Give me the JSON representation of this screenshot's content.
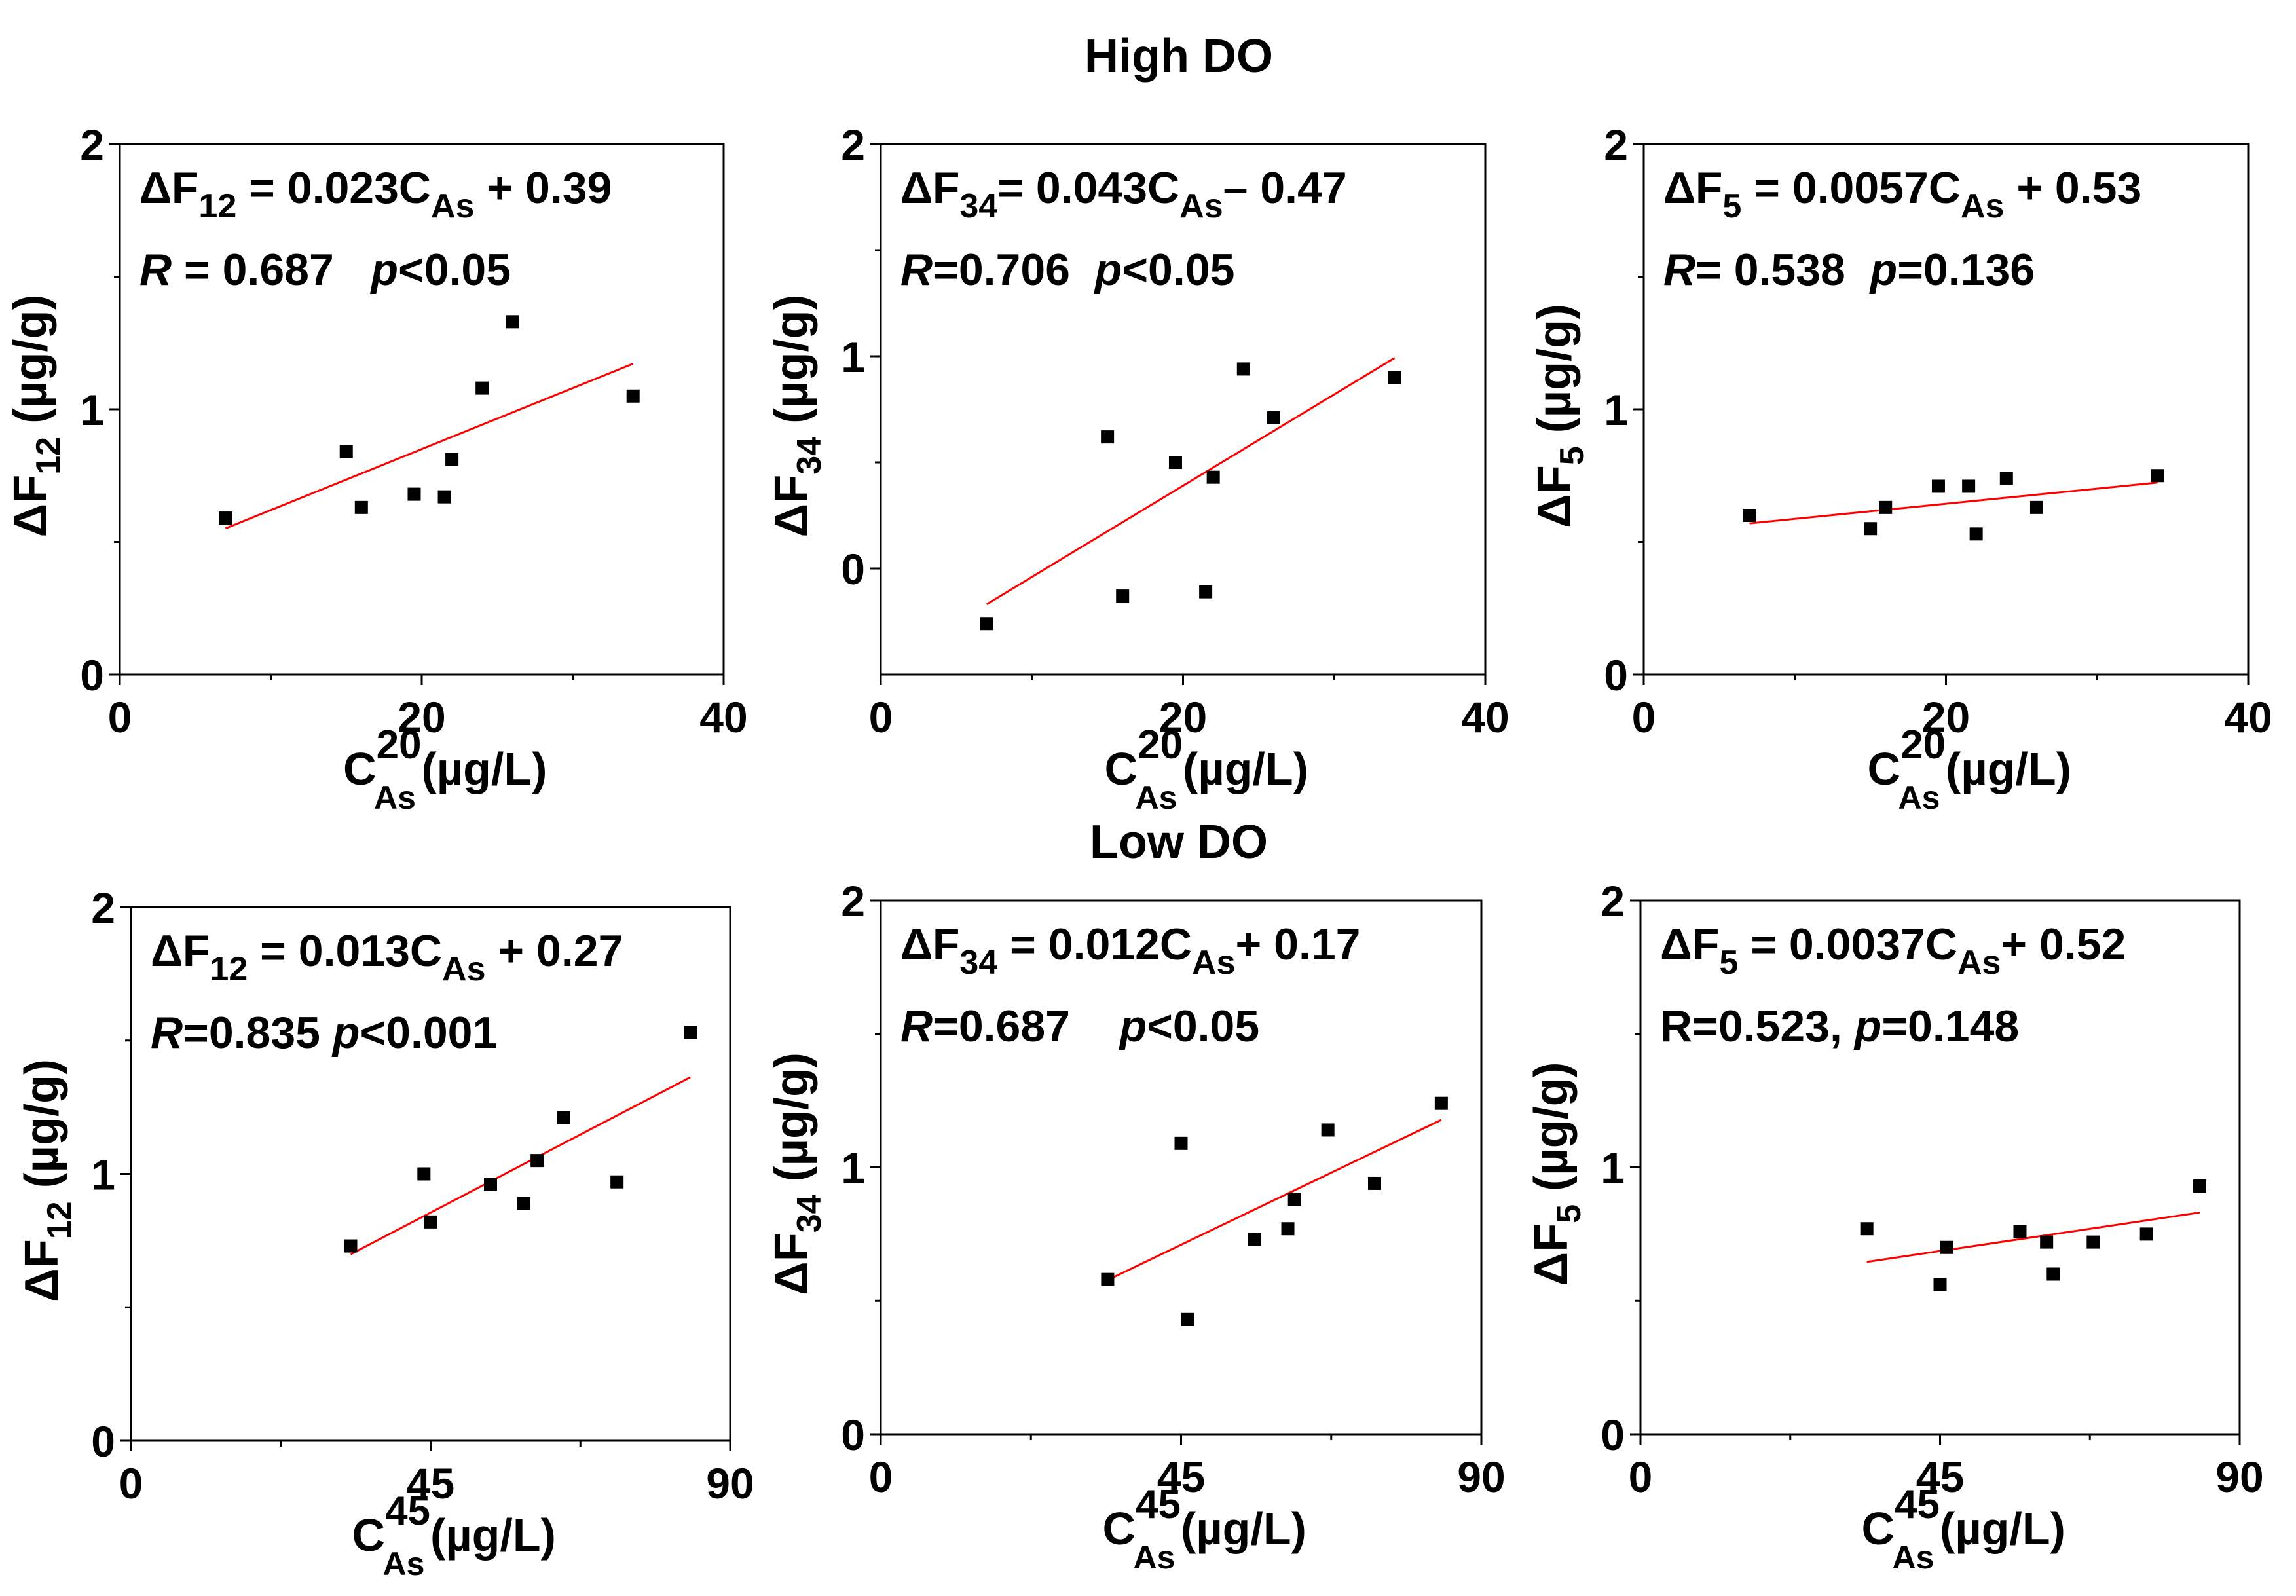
{
  "titles": {
    "high": "High DO",
    "low": "Low DO"
  },
  "colors": {
    "fit_line": "#ff0000",
    "points": "#000000",
    "axes": "#000000"
  },
  "chart_data": [
    {
      "type": "scatter",
      "group": "High DO",
      "panel": "top-left",
      "xlim": [
        0,
        40
      ],
      "ylim": [
        0,
        2
      ],
      "xticks": [
        0,
        20,
        40
      ],
      "yticks": [
        0,
        1,
        2
      ],
      "x_minor": [
        10,
        30
      ],
      "y_minor": [
        0.5,
        1.5
      ],
      "ylabel": {
        "main": "ΔF",
        "sub": "12",
        "unit": " (µg/g)"
      },
      "xlabel": {
        "main": "C",
        "sup": "20",
        "sub": "As",
        "unit": "(µg/L)"
      },
      "equation": [
        {
          "t": "ΔF"
        },
        {
          "t": "12",
          "sub": true
        },
        {
          "t": " = 0.023C"
        },
        {
          "t": "As",
          "sub": true
        },
        {
          "t": " + 0.39"
        }
      ],
      "stats": [
        {
          "t": "R",
          "i": true
        },
        {
          "t": " = 0.687   "
        },
        {
          "t": "p",
          "i": true
        },
        {
          "t": "<0.05"
        }
      ],
      "points": [
        [
          7,
          0.59
        ],
        [
          15,
          0.84
        ],
        [
          16,
          0.63
        ],
        [
          19.5,
          0.68
        ],
        [
          21.5,
          0.67
        ],
        [
          22,
          0.81
        ],
        [
          24,
          1.08
        ],
        [
          26,
          1.33
        ],
        [
          34,
          1.05
        ]
      ],
      "fit": {
        "slope": 0.023,
        "intercept": 0.39,
        "x_range": [
          7,
          34
        ]
      }
    },
    {
      "type": "scatter",
      "group": "High DO",
      "panel": "top-middle",
      "xlim": [
        0,
        40
      ],
      "ylim": [
        -0.5,
        2
      ],
      "xticks": [
        0,
        20,
        40
      ],
      "yticks": [
        0,
        1,
        2
      ],
      "x_minor": [
        10,
        30
      ],
      "y_minor": [
        0.5,
        1.5
      ],
      "ylabel": {
        "main": "ΔF",
        "sub": "34",
        "unit": " (µg/g)"
      },
      "xlabel": {
        "main": "C",
        "sup": "20",
        "sub": "As",
        "unit": "(µg/L)"
      },
      "equation": [
        {
          "t": "ΔF"
        },
        {
          "t": "34",
          "sub": true
        },
        {
          "t": "= 0.043C"
        },
        {
          "t": "As",
          "sub": true
        },
        {
          "t": "– 0.47"
        }
      ],
      "stats": [
        {
          "t": "R",
          "i": true
        },
        {
          "t": "=0.706  "
        },
        {
          "t": "p",
          "i": true
        },
        {
          "t": "<0.05"
        }
      ],
      "points": [
        [
          7,
          -0.26
        ],
        [
          15,
          0.62
        ],
        [
          16,
          -0.13
        ],
        [
          19.5,
          0.5
        ],
        [
          21.5,
          -0.11
        ],
        [
          22,
          0.43
        ],
        [
          24,
          0.94
        ],
        [
          26,
          0.71
        ],
        [
          34,
          0.9
        ]
      ],
      "fit": {
        "slope": 0.043,
        "intercept": -0.47,
        "x_range": [
          7,
          34
        ]
      }
    },
    {
      "type": "scatter",
      "group": "High DO",
      "panel": "top-right",
      "xlim": [
        0,
        40
      ],
      "ylim": [
        0,
        2
      ],
      "xticks": [
        0,
        20,
        40
      ],
      "yticks": [
        0,
        1,
        2
      ],
      "x_minor": [
        10,
        30
      ],
      "y_minor": [
        0.5,
        1.5
      ],
      "ylabel": {
        "main": "ΔF",
        "sub": "5",
        "unit": " (µg/g)"
      },
      "xlabel": {
        "main": "C",
        "sup": "20",
        "sub": "As",
        "unit": "(µg/L)"
      },
      "equation": [
        {
          "t": "ΔF"
        },
        {
          "t": "5",
          "sub": true
        },
        {
          "t": " = 0.0057C"
        },
        {
          "t": "As",
          "sub": true
        },
        {
          "t": " + 0.53"
        }
      ],
      "stats": [
        {
          "t": "R",
          "i": true
        },
        {
          "t": "= 0.538  "
        },
        {
          "t": "p",
          "i": true
        },
        {
          "t": "=0.136"
        }
      ],
      "points": [
        [
          7,
          0.6
        ],
        [
          15,
          0.55
        ],
        [
          16,
          0.63
        ],
        [
          19.5,
          0.71
        ],
        [
          21.5,
          0.71
        ],
        [
          22,
          0.53
        ],
        [
          24,
          0.74
        ],
        [
          26,
          0.63
        ],
        [
          34,
          0.75
        ]
      ],
      "fit": {
        "slope": 0.0057,
        "intercept": 0.53,
        "x_range": [
          7,
          34
        ]
      }
    },
    {
      "type": "scatter",
      "group": "Low DO",
      "panel": "bottom-left",
      "xlim": [
        0,
        90
      ],
      "ylim": [
        0,
        2
      ],
      "xticks": [
        0,
        45,
        90
      ],
      "yticks": [
        0,
        1,
        2
      ],
      "x_minor": [
        22.5,
        67.5
      ],
      "y_minor": [
        0.5,
        1.5
      ],
      "ylabel": {
        "main": "ΔF",
        "sub": "12",
        "unit": " (µg/g)"
      },
      "xlabel": {
        "main": "C",
        "sup": "45",
        "sub": "As",
        "unit": "(µg/L)"
      },
      "equation": [
        {
          "t": "ΔF"
        },
        {
          "t": "12",
          "sub": true
        },
        {
          "t": " = 0.013C"
        },
        {
          "t": "As",
          "sub": true
        },
        {
          "t": " + 0.27"
        }
      ],
      "stats": [
        {
          "t": "R",
          "i": true
        },
        {
          "t": "=0.835 "
        },
        {
          "t": "p",
          "i": true
        },
        {
          "t": "<0.001"
        }
      ],
      "points": [
        [
          33,
          0.73
        ],
        [
          44,
          1.0
        ],
        [
          45,
          0.82
        ],
        [
          54,
          0.96
        ],
        [
          59,
          0.89
        ],
        [
          61,
          1.05
        ],
        [
          65,
          1.21
        ],
        [
          73,
          0.97
        ],
        [
          84,
          1.53
        ]
      ],
      "fit": {
        "slope": 0.013,
        "intercept": 0.27,
        "x_range": [
          33,
          84
        ]
      }
    },
    {
      "type": "scatter",
      "group": "Low DO",
      "panel": "bottom-middle",
      "xlim": [
        0,
        90
      ],
      "ylim": [
        0,
        2
      ],
      "xticks": [
        0,
        45,
        90
      ],
      "yticks": [
        0,
        1,
        2
      ],
      "x_minor": [
        22.5,
        67.5
      ],
      "y_minor": [
        0.5,
        1.5
      ],
      "ylabel": {
        "main": "ΔF",
        "sub": "34",
        "unit": " (µg/g)"
      },
      "xlabel": {
        "main": "C",
        "sup": "45",
        "sub": "As",
        "unit": "(µg/L)"
      },
      "equation": [
        {
          "t": "ΔF"
        },
        {
          "t": "34",
          "sub": true
        },
        {
          "t": " = 0.012C"
        },
        {
          "t": "As",
          "sub": true
        },
        {
          "t": "+ 0.17"
        }
      ],
      "stats": [
        {
          "t": "R",
          "i": true
        },
        {
          "t": "=0.687    "
        },
        {
          "t": "p",
          "i": true
        },
        {
          "t": "<0.05"
        }
      ],
      "points": [
        [
          34,
          0.58
        ],
        [
          45,
          1.09
        ],
        [
          46,
          0.43
        ],
        [
          56,
          0.73
        ],
        [
          61,
          0.77
        ],
        [
          62,
          0.88
        ],
        [
          67,
          1.14
        ],
        [
          74,
          0.94
        ],
        [
          84,
          1.24
        ]
      ],
      "fit": {
        "slope": 0.012,
        "intercept": 0.17,
        "x_range": [
          34,
          84
        ]
      }
    },
    {
      "type": "scatter",
      "group": "Low DO",
      "panel": "bottom-right",
      "xlim": [
        0,
        90
      ],
      "ylim": [
        0,
        2
      ],
      "xticks": [
        0,
        45,
        90
      ],
      "yticks": [
        0,
        1,
        2
      ],
      "x_minor": [
        22.5,
        67.5
      ],
      "y_minor": [
        0.5,
        1.5
      ],
      "ylabel": {
        "main": "ΔF",
        "sub": "5",
        "unit": " (µg/g)"
      },
      "xlabel": {
        "main": "C",
        "sup": "45",
        "sub": "As",
        "unit": "(µg/L)"
      },
      "equation": [
        {
          "t": "ΔF"
        },
        {
          "t": "5",
          "sub": true
        },
        {
          "t": " = 0.0037C"
        },
        {
          "t": "As",
          "sub": true
        },
        {
          "t": "+ 0.52"
        }
      ],
      "stats": [
        {
          "t": "R=0.523, "
        },
        {
          "t": "p",
          "i": true
        },
        {
          "t": "=0.148"
        }
      ],
      "points": [
        [
          34,
          0.77
        ],
        [
          45,
          0.56
        ],
        [
          46,
          0.7
        ],
        [
          57,
          0.76
        ],
        [
          61,
          0.72
        ],
        [
          62,
          0.6
        ],
        [
          68,
          0.72
        ],
        [
          76,
          0.75
        ],
        [
          84,
          0.93
        ]
      ],
      "fit": {
        "slope": 0.0037,
        "intercept": 0.52,
        "x_range": [
          34,
          84
        ]
      }
    }
  ]
}
